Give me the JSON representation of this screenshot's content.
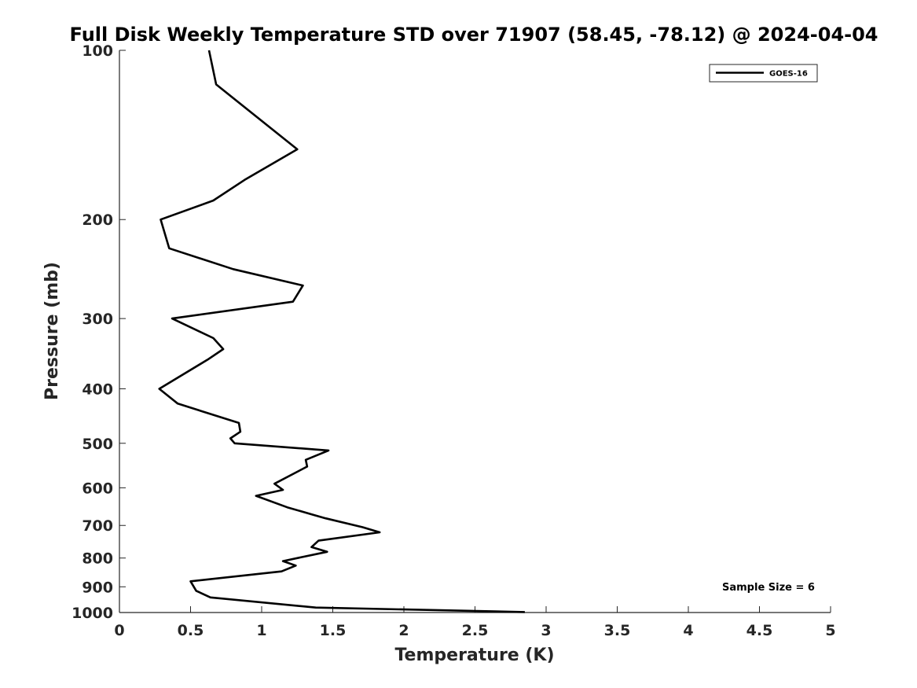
{
  "chart_data": {
    "type": "line",
    "title": "Full Disk Weekly Temperature STD over 71907 (58.45, -78.12) @ 2024-04-04",
    "xlabel": "Temperature (K)",
    "ylabel": "Pressure (mb)",
    "xlim": [
      0,
      5
    ],
    "ylim": [
      100,
      1000
    ],
    "yscale": "log",
    "yreversed": true,
    "grid": false,
    "legend_position": "top-right",
    "x_ticks": [
      0,
      0.5,
      1,
      1.5,
      2,
      2.5,
      3,
      3.5,
      4,
      4.5,
      5
    ],
    "x_tick_labels": [
      "0",
      "0.5",
      "1",
      "1.5",
      "2",
      "2.5",
      "3",
      "3.5",
      "4",
      "4.5",
      "5"
    ],
    "y_ticks": [
      100,
      200,
      300,
      400,
      500,
      600,
      700,
      800,
      900,
      1000
    ],
    "y_tick_labels": [
      "100",
      "200",
      "300",
      "400",
      "500",
      "600",
      "700",
      "800",
      "900",
      "1000"
    ],
    "series": [
      {
        "name": "GOES-16",
        "color": "#000000",
        "x": [
          0.63,
          0.68,
          1.25,
          0.88,
          0.66,
          0.29,
          0.35,
          0.8,
          1.29,
          1.22,
          0.37,
          0.66,
          0.73,
          0.62,
          0.28,
          0.41,
          0.84,
          0.85,
          0.78,
          0.81,
          1.47,
          1.31,
          1.32,
          1.09,
          1.15,
          0.96,
          1.18,
          1.36,
          1.45,
          1.71,
          1.83,
          1.4,
          1.35,
          1.46,
          1.15,
          1.24,
          1.14,
          0.5,
          0.54,
          0.64,
          1.38,
          2.85
        ],
        "y": [
          100,
          115,
          150,
          170,
          185,
          200,
          225,
          245,
          262,
          280,
          300,
          325,
          340,
          355,
          400,
          425,
          460,
          477,
          490,
          500,
          515,
          535,
          550,
          590,
          605,
          620,
          650,
          670,
          680,
          705,
          720,
          745,
          765,
          780,
          810,
          825,
          845,
          880,
          915,
          940,
          980,
          998
        ]
      }
    ],
    "annotations": [
      "Sample Size = 6"
    ]
  }
}
